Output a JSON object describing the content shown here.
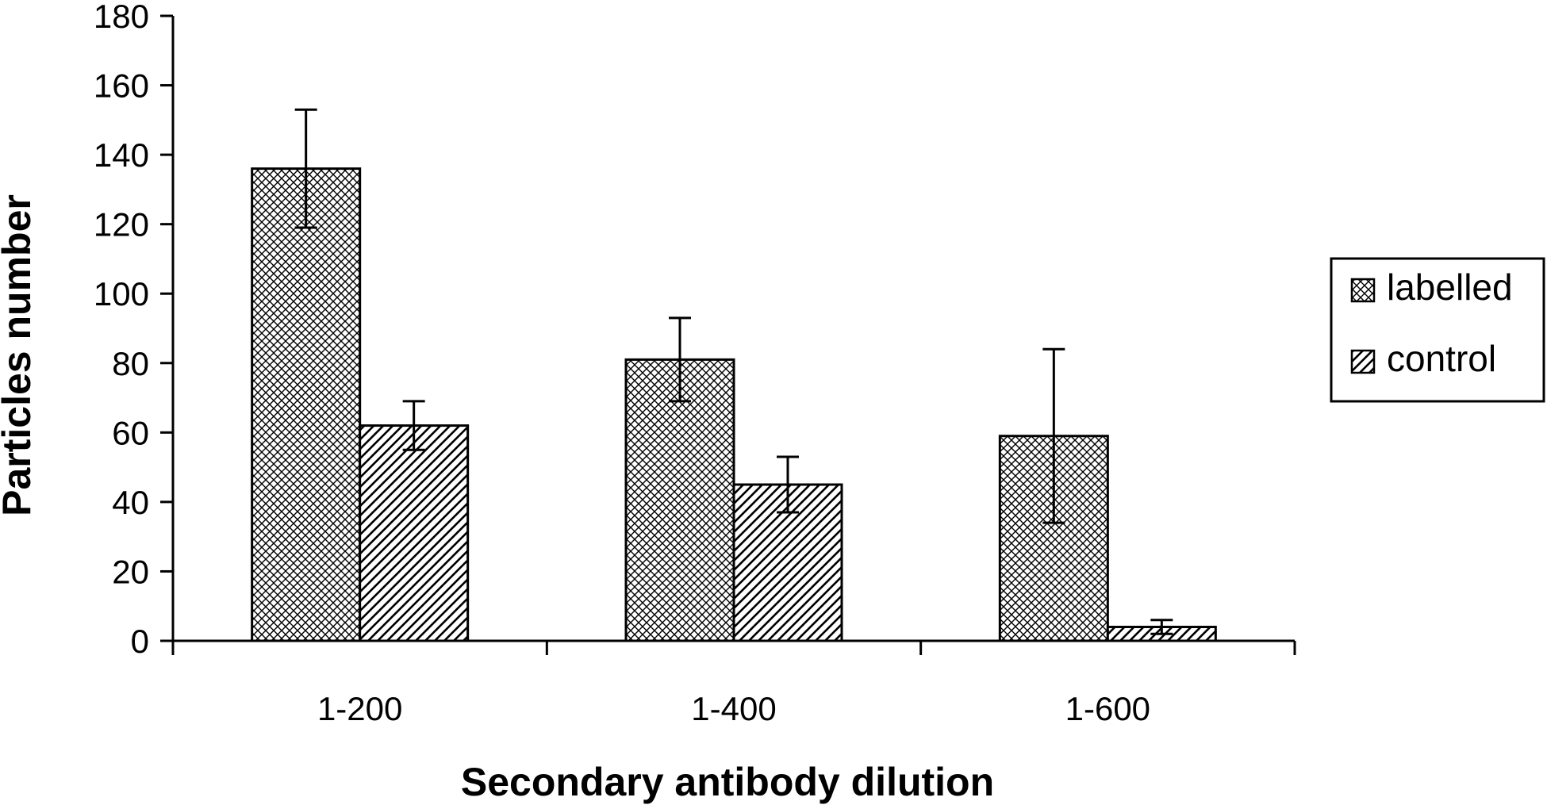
{
  "chart_data": {
    "type": "bar",
    "title": "",
    "xlabel": "Secondary antibody dilution",
    "ylabel": "Particles number",
    "categories": [
      "1-200",
      "1-400",
      "1-600"
    ],
    "ylim": [
      0,
      180
    ],
    "yticks": [
      0,
      20,
      40,
      60,
      80,
      100,
      120,
      140,
      160,
      180
    ],
    "grid": false,
    "legend_position": "right",
    "series": [
      {
        "name": "labelled",
        "pattern": "crosshatch",
        "values": [
          136,
          81,
          59
        ],
        "errors": [
          17,
          12,
          25
        ]
      },
      {
        "name": "control",
        "pattern": "diagonal",
        "values": [
          62,
          45,
          4
        ],
        "errors": [
          7,
          8,
          2
        ]
      }
    ]
  }
}
